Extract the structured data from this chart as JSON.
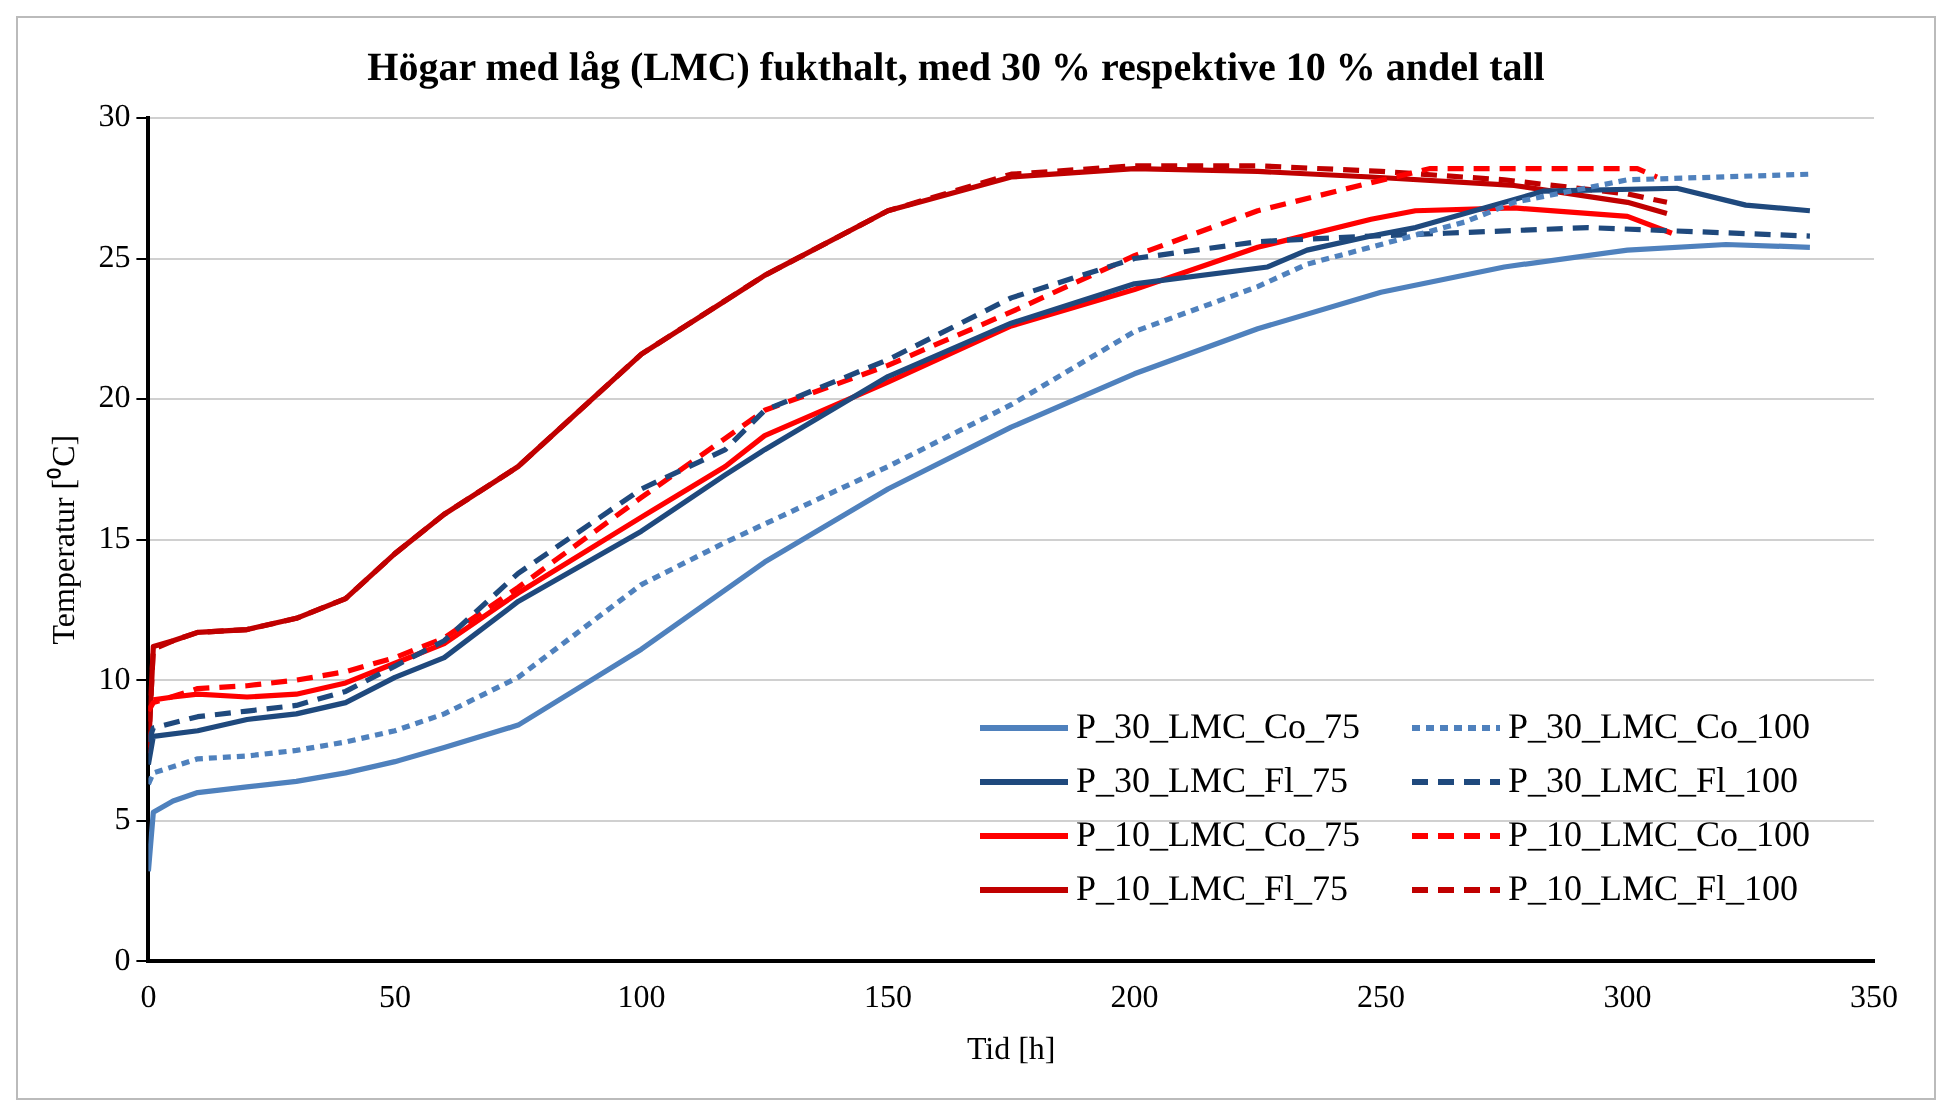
{
  "chart_data": {
    "type": "line",
    "title": "Högar med låg (LMC) fukthalt, med 30 % respektive 10 % andel tall",
    "xlabel": "Tid [h]",
    "ylabel": "Temperatur [⁰C]",
    "xlim": [
      0,
      350
    ],
    "xticks": [
      0,
      50,
      100,
      150,
      200,
      250,
      300,
      350
    ],
    "ylim": [
      0,
      30
    ],
    "yticks": [
      0,
      5,
      10,
      15,
      20,
      25,
      30
    ],
    "grid": "y",
    "legend": "bottom right",
    "marker": "none",
    "series": [
      {
        "name": "P_30_LMC_Co_75",
        "color": "#4f81bd",
        "line_style": "solid",
        "x": [
          0,
          1,
          5,
          10,
          20,
          30,
          40,
          50,
          60,
          75,
          100,
          125,
          150,
          175,
          200,
          225,
          250,
          275,
          300,
          320,
          337
        ],
        "values": [
          3.2,
          5.3,
          5.7,
          6.0,
          6.2,
          6.4,
          6.7,
          7.1,
          7.6,
          8.4,
          11.1,
          14.2,
          16.8,
          19.0,
          20.9,
          22.5,
          23.8,
          24.7,
          25.3,
          25.5,
          25.4
        ]
      },
      {
        "name": "P_30_LMC_Co_100",
        "color": "#4f81bd",
        "line_style": "dotted",
        "x": [
          0,
          1,
          10,
          20,
          30,
          40,
          50,
          60,
          75,
          100,
          117,
          150,
          175,
          200,
          225,
          235,
          250,
          267,
          277,
          300,
          337
        ],
        "values": [
          6.3,
          6.7,
          7.2,
          7.3,
          7.5,
          7.8,
          8.2,
          8.8,
          10.1,
          13.4,
          14.9,
          17.6,
          19.8,
          22.4,
          24.0,
          24.8,
          25.5,
          26.3,
          27.0,
          27.8,
          28.0
        ]
      },
      {
        "name": "P_30_LMC_Fl_75",
        "color": "#1f497d",
        "line_style": "solid",
        "x": [
          0,
          1,
          10,
          20,
          30,
          40,
          50,
          60,
          75,
          100,
          117,
          125,
          150,
          175,
          200,
          227,
          235,
          248,
          257,
          283,
          310,
          324,
          337
        ],
        "values": [
          7.0,
          8.0,
          8.2,
          8.6,
          8.8,
          9.2,
          10.1,
          10.8,
          12.8,
          15.3,
          17.3,
          18.2,
          20.8,
          22.7,
          24.1,
          24.7,
          25.3,
          25.8,
          26.1,
          27.4,
          27.5,
          26.9,
          26.7
        ]
      },
      {
        "name": "P_30_LMC_Fl_100",
        "color": "#1f497d",
        "line_style": "dashed",
        "x": [
          0,
          1,
          10,
          20,
          30,
          40,
          50,
          60,
          75,
          100,
          117,
          125,
          150,
          175,
          200,
          225,
          248,
          263,
          292,
          337
        ],
        "values": [
          7.8,
          8.3,
          8.7,
          8.9,
          9.1,
          9.6,
          10.5,
          11.4,
          13.8,
          16.8,
          18.2,
          19.6,
          21.4,
          23.6,
          25.0,
          25.6,
          25.8,
          25.9,
          26.1,
          25.8
        ]
      },
      {
        "name": "P_10_LMC_Co_75",
        "color": "#ff0000",
        "line_style": "solid",
        "x": [
          1,
          5,
          10,
          20,
          30,
          40,
          50,
          60,
          75,
          100,
          117,
          125,
          150,
          175,
          200,
          225,
          248,
          257,
          277,
          300,
          309
        ],
        "values": [
          9.3,
          9.4,
          9.5,
          9.4,
          9.5,
          9.9,
          10.6,
          11.3,
          13.1,
          15.8,
          17.6,
          18.7,
          20.6,
          22.6,
          23.9,
          25.4,
          26.4,
          26.7,
          26.8,
          26.5,
          25.9
        ]
      },
      {
        "name": "P_10_LMC_Co_100",
        "color": "#ff0000",
        "line_style": "dashed",
        "x": [
          0,
          1,
          10,
          20,
          30,
          40,
          50,
          60,
          75,
          100,
          117,
          125,
          150,
          175,
          200,
          225,
          248,
          260,
          302,
          306
        ],
        "values": [
          8.9,
          9.2,
          9.7,
          9.8,
          10.0,
          10.3,
          10.8,
          11.5,
          13.3,
          16.5,
          18.6,
          19.6,
          21.2,
          23.1,
          25.1,
          26.7,
          27.7,
          28.2,
          28.2,
          27.9
        ]
      },
      {
        "name": "P_10_LMC_Fl_75",
        "color": "#c00000",
        "line_style": "solid",
        "x": [
          0,
          1,
          5,
          10,
          20,
          30,
          40,
          50,
          60,
          75,
          100,
          117,
          125,
          150,
          175,
          200,
          225,
          248,
          277,
          300,
          308
        ],
        "values": [
          7.4,
          11.2,
          11.4,
          11.7,
          11.8,
          12.2,
          12.9,
          14.5,
          15.9,
          17.6,
          21.6,
          23.5,
          24.4,
          26.7,
          27.9,
          28.2,
          28.1,
          27.9,
          27.6,
          27.0,
          26.6
        ]
      },
      {
        "name": "P_10_LMC_Fl_100",
        "color": "#c00000",
        "line_style": "dashed",
        "x": [
          0,
          1,
          5,
          10,
          20,
          30,
          40,
          50,
          60,
          75,
          100,
          125,
          150,
          175,
          200,
          225,
          250,
          275,
          300,
          308
        ],
        "values": [
          7.6,
          11.1,
          11.4,
          11.7,
          11.8,
          12.2,
          12.9,
          14.5,
          15.9,
          17.6,
          21.6,
          24.4,
          26.7,
          28.0,
          28.3,
          28.3,
          28.1,
          27.8,
          27.3,
          27.0
        ]
      }
    ]
  }
}
